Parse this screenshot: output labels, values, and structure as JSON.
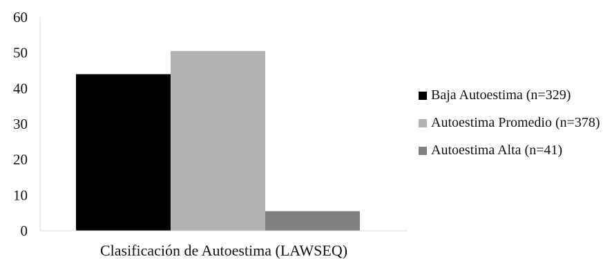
{
  "chart_data": {
    "type": "bar",
    "xlabel": "Clasificación de Autoestima (LAWSEQ)",
    "ylabel": "",
    "ylim": [
      0,
      60
    ],
    "yticks": [
      "0",
      "10",
      "20",
      "30",
      "40",
      "50",
      "60"
    ],
    "grid": false,
    "legend_position": "right",
    "series": [
      {
        "name": "Baja Autoestima (n=329)",
        "value": 44,
        "color": "#000000"
      },
      {
        "name": "Autoestima Promedio (n=378)",
        "value": 50.5,
        "color": "#b3b3b3"
      },
      {
        "name": "Autoestima Alta (n=41)",
        "value": 5.5,
        "color": "#808080"
      }
    ]
  }
}
